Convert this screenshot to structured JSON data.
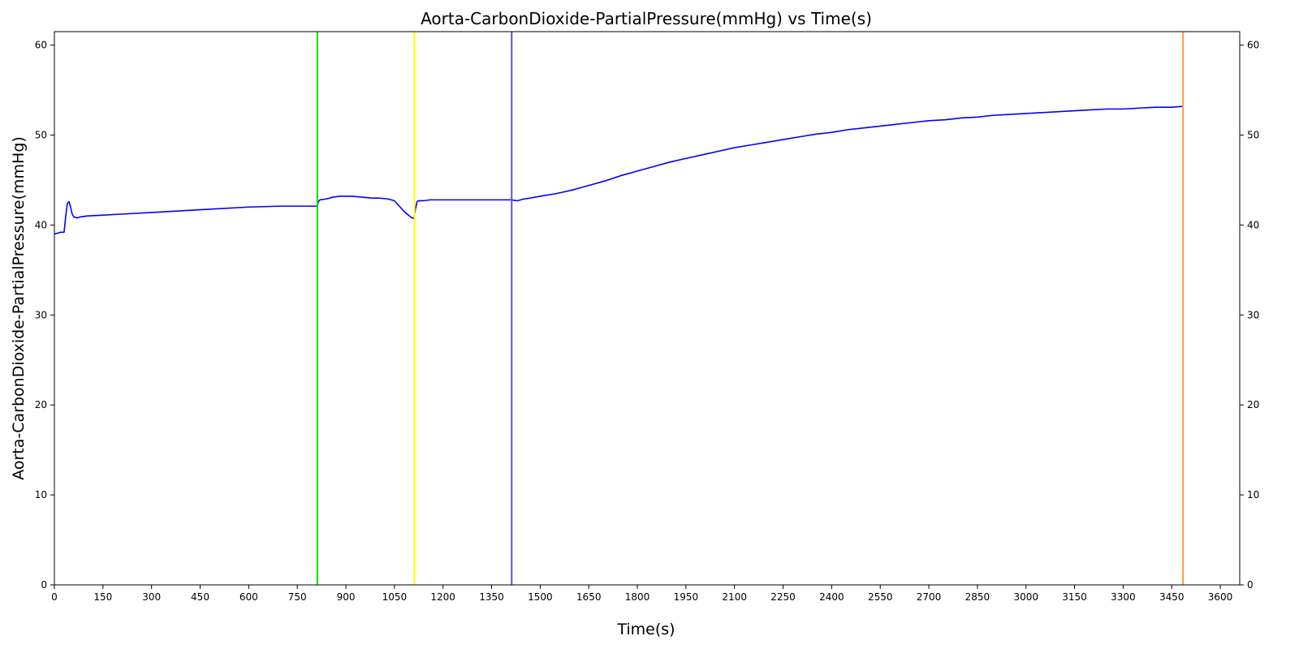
{
  "chart_data": {
    "type": "line",
    "title": "Aorta-CarbonDioxide-PartialPressure(mmHg) vs Time(s)",
    "xlabel": "Time(s)",
    "ylabel": "Aorta-CarbonDioxide-PartialPressure(mmHg)",
    "xlim": [
      0,
      3660
    ],
    "ylim": [
      0,
      61.5
    ],
    "x_ticks": [
      0,
      150,
      300,
      450,
      600,
      750,
      900,
      1050,
      1200,
      1350,
      1500,
      1650,
      1800,
      1950,
      2100,
      2250,
      2400,
      2550,
      2700,
      2850,
      3000,
      3150,
      3300,
      3450,
      3600
    ],
    "y_ticks": [
      0,
      10,
      20,
      30,
      40,
      50,
      60
    ],
    "right_axis_ticks": true,
    "grid": false,
    "series": [
      {
        "color": "#0000ff",
        "x": [
          0,
          10,
          20,
          30,
          35,
          40,
          45,
          50,
          55,
          60,
          70,
          80,
          100,
          150,
          200,
          300,
          400,
          500,
          600,
          700,
          750,
          800,
          812,
          815,
          820,
          840,
          860,
          880,
          900,
          920,
          950,
          980,
          1000,
          1030,
          1050,
          1060,
          1070,
          1080,
          1090,
          1100,
          1110,
          1115,
          1120,
          1125,
          1130,
          1140,
          1160,
          1200,
          1300,
          1400,
          1410,
          1430,
          1450,
          1470,
          1500,
          1550,
          1600,
          1650,
          1700,
          1750,
          1800,
          1850,
          1900,
          1950,
          2000,
          2050,
          2100,
          2150,
          2200,
          2250,
          2300,
          2350,
          2400,
          2450,
          2500,
          2550,
          2600,
          2650,
          2700,
          2750,
          2800,
          2850,
          2900,
          2950,
          3000,
          3050,
          3100,
          3150,
          3200,
          3250,
          3300,
          3350,
          3400,
          3450,
          3485
        ],
        "y": [
          39.0,
          39.1,
          39.2,
          39.2,
          41.0,
          42.4,
          42.6,
          42.0,
          41.2,
          40.9,
          40.8,
          40.9,
          41.0,
          41.1,
          41.2,
          41.4,
          41.6,
          41.8,
          42.0,
          42.1,
          42.1,
          42.1,
          42.1,
          42.6,
          42.8,
          42.9,
          43.1,
          43.2,
          43.2,
          43.2,
          43.1,
          43.0,
          43.0,
          42.9,
          42.7,
          42.3,
          41.9,
          41.5,
          41.2,
          40.9,
          40.7,
          41.8,
          42.6,
          42.7,
          42.7,
          42.7,
          42.8,
          42.8,
          42.8,
          42.8,
          42.8,
          42.7,
          42.9,
          43.0,
          43.2,
          43.5,
          43.9,
          44.4,
          44.9,
          45.5,
          46.0,
          46.5,
          47.0,
          47.4,
          47.8,
          48.2,
          48.6,
          48.9,
          49.2,
          49.5,
          49.8,
          50.1,
          50.3,
          50.6,
          50.8,
          51.0,
          51.2,
          51.4,
          51.6,
          51.7,
          51.9,
          52.0,
          52.2,
          52.3,
          52.4,
          52.5,
          52.6,
          52.7,
          52.8,
          52.9,
          52.9,
          53.0,
          53.1,
          53.1,
          53.2
        ]
      }
    ],
    "vertical_markers": [
      {
        "x": 812,
        "color": "#00e000"
      },
      {
        "x": 1112,
        "color": "#ffff00"
      },
      {
        "x": 1412,
        "color": "#5555cc"
      },
      {
        "x": 3485,
        "color": "#ff9a40"
      }
    ]
  }
}
